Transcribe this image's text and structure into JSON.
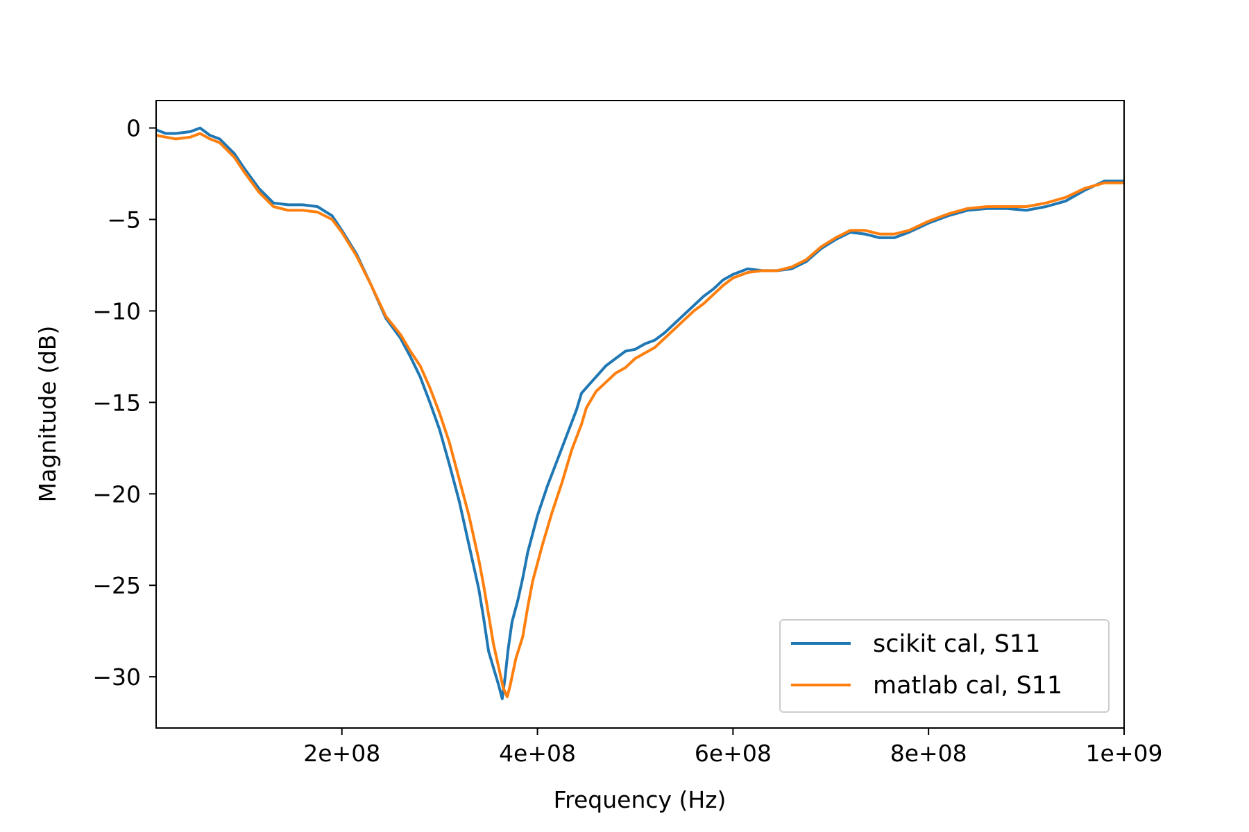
{
  "chart_data": {
    "type": "line",
    "xlabel": "Frequency (Hz)",
    "ylabel": "Magnitude (dB)",
    "xlim": [
      10000000,
      1000000000
    ],
    "ylim": [
      -32.8,
      1.5
    ],
    "xticks": [
      200000000,
      400000000,
      600000000,
      800000000,
      1000000000
    ],
    "xtick_labels": [
      "2e+08",
      "4e+08",
      "6e+08",
      "8e+08",
      "1e+09"
    ],
    "yticks": [
      0,
      -5,
      -10,
      -15,
      -20,
      -25,
      -30
    ],
    "ytick_labels": [
      "0",
      "−5",
      "−10",
      "−15",
      "−20",
      "−25",
      "−30"
    ],
    "grid": false,
    "legend_position": "lower-right",
    "series": [
      {
        "name": "scikit cal, S11",
        "color": "#1f77b4",
        "x": [
          10000000,
          20000000,
          30000000,
          45000000,
          55000000,
          65000000,
          75000000,
          90000000,
          100000000,
          115000000,
          130000000,
          145000000,
          160000000,
          175000000,
          190000000,
          200000000,
          215000000,
          230000000,
          245000000,
          260000000,
          270000000,
          280000000,
          290000000,
          300000000,
          310000000,
          320000000,
          330000000,
          340000000,
          345000000,
          350000000,
          355000000,
          360000000,
          364000000,
          367000000,
          370000000,
          374000000,
          380000000,
          385000000,
          390000000,
          400000000,
          410000000,
          420000000,
          430000000,
          440000000,
          445000000,
          450000000,
          460000000,
          470000000,
          480000000,
          490000000,
          500000000,
          510000000,
          520000000,
          530000000,
          540000000,
          550000000,
          560000000,
          570000000,
          580000000,
          590000000,
          600000000,
          615000000,
          630000000,
          645000000,
          660000000,
          675000000,
          690000000,
          705000000,
          720000000,
          735000000,
          750000000,
          765000000,
          780000000,
          800000000,
          820000000,
          840000000,
          860000000,
          880000000,
          900000000,
          920000000,
          940000000,
          960000000,
          980000000,
          1000000000
        ],
        "y": [
          -0.1,
          -0.3,
          -0.3,
          -0.2,
          0.0,
          -0.4,
          -0.6,
          -1.4,
          -2.2,
          -3.3,
          -4.1,
          -4.2,
          -4.2,
          -4.3,
          -4.8,
          -5.6,
          -6.9,
          -8.6,
          -10.4,
          -11.5,
          -12.5,
          -13.6,
          -15.0,
          -16.5,
          -18.4,
          -20.4,
          -22.8,
          -25.2,
          -26.8,
          -28.6,
          -29.5,
          -30.4,
          -31.2,
          -30.0,
          -28.5,
          -27.0,
          -25.8,
          -24.6,
          -23.2,
          -21.2,
          -19.6,
          -18.2,
          -16.8,
          -15.4,
          -14.5,
          -14.2,
          -13.6,
          -13.0,
          -12.6,
          -12.2,
          -12.1,
          -11.8,
          -11.6,
          -11.2,
          -10.7,
          -10.2,
          -9.7,
          -9.2,
          -8.8,
          -8.3,
          -8.0,
          -7.7,
          -7.8,
          -7.8,
          -7.7,
          -7.3,
          -6.6,
          -6.1,
          -5.7,
          -5.8,
          -6.0,
          -6.0,
          -5.7,
          -5.2,
          -4.8,
          -4.5,
          -4.4,
          -4.4,
          -4.5,
          -4.3,
          -4.0,
          -3.4,
          -2.9,
          -2.9
        ]
      },
      {
        "name": "matlab cal, S11",
        "color": "#ff7f0e",
        "x": [
          10000000,
          20000000,
          30000000,
          45000000,
          55000000,
          65000000,
          75000000,
          90000000,
          100000000,
          115000000,
          130000000,
          145000000,
          160000000,
          175000000,
          190000000,
          200000000,
          215000000,
          230000000,
          245000000,
          260000000,
          270000000,
          280000000,
          290000000,
          300000000,
          310000000,
          320000000,
          330000000,
          340000000,
          345000000,
          350000000,
          355000000,
          360000000,
          365000000,
          369000000,
          372000000,
          378000000,
          385000000,
          390000000,
          395000000,
          405000000,
          415000000,
          425000000,
          435000000,
          445000000,
          450000000,
          460000000,
          470000000,
          480000000,
          490000000,
          500000000,
          510000000,
          520000000,
          530000000,
          540000000,
          550000000,
          560000000,
          570000000,
          580000000,
          590000000,
          600000000,
          615000000,
          630000000,
          645000000,
          660000000,
          675000000,
          690000000,
          705000000,
          720000000,
          735000000,
          750000000,
          765000000,
          780000000,
          800000000,
          820000000,
          840000000,
          860000000,
          880000000,
          900000000,
          920000000,
          940000000,
          960000000,
          980000000,
          1000000000
        ],
        "y": [
          -0.4,
          -0.5,
          -0.6,
          -0.5,
          -0.3,
          -0.6,
          -0.8,
          -1.6,
          -2.4,
          -3.5,
          -4.3,
          -4.5,
          -4.5,
          -4.6,
          -5.0,
          -5.7,
          -7.0,
          -8.6,
          -10.3,
          -11.3,
          -12.2,
          -13.0,
          -14.2,
          -15.6,
          -17.2,
          -19.2,
          -21.2,
          -23.6,
          -25.0,
          -26.6,
          -28.2,
          -29.4,
          -30.6,
          -31.1,
          -30.5,
          -29.0,
          -27.8,
          -26.2,
          -24.8,
          -22.8,
          -21.0,
          -19.4,
          -17.6,
          -16.2,
          -15.3,
          -14.4,
          -13.9,
          -13.4,
          -13.1,
          -12.6,
          -12.3,
          -12.0,
          -11.5,
          -11.0,
          -10.5,
          -10.0,
          -9.6,
          -9.1,
          -8.6,
          -8.2,
          -7.9,
          -7.8,
          -7.8,
          -7.6,
          -7.2,
          -6.5,
          -6.0,
          -5.6,
          -5.6,
          -5.8,
          -5.8,
          -5.6,
          -5.1,
          -4.7,
          -4.4,
          -4.3,
          -4.3,
          -4.3,
          -4.1,
          -3.8,
          -3.3,
          -3.0,
          -3.0
        ]
      }
    ]
  }
}
